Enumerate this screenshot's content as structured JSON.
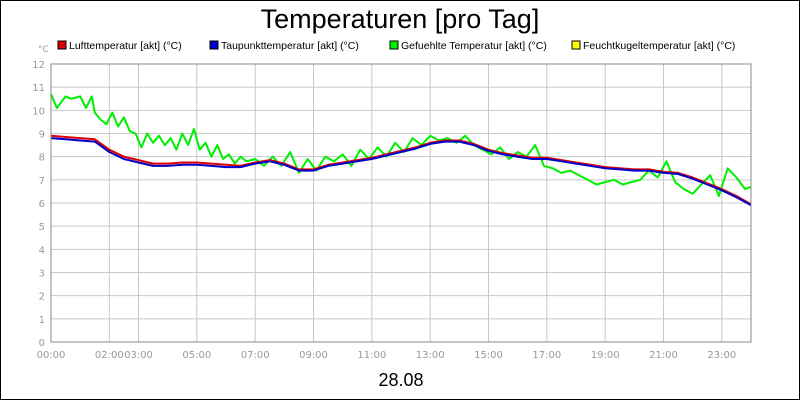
{
  "chart_data": {
    "type": "line",
    "title": "Temperaturen [pro Tag]",
    "ylabel": "°C",
    "xlabel": "28.08",
    "ylim": [
      0,
      12
    ],
    "xlim_hours": [
      0,
      24
    ],
    "y_ticks": [
      "0",
      "1",
      "2",
      "3",
      "4",
      "5",
      "6",
      "7",
      "8",
      "9",
      "10",
      "11",
      "12"
    ],
    "x_ticks": [
      {
        "hour": 0,
        "label": "00:00"
      },
      {
        "hour": 2,
        "label": "02:00"
      },
      {
        "hour": 3,
        "label": "03:00"
      },
      {
        "hour": 5,
        "label": "05:00"
      },
      {
        "hour": 7,
        "label": "07:00"
      },
      {
        "hour": 9,
        "label": "09:00"
      },
      {
        "hour": 11,
        "label": "11:00"
      },
      {
        "hour": 13,
        "label": "13:00"
      },
      {
        "hour": 15,
        "label": "15:00"
      },
      {
        "hour": 17,
        "label": "17:00"
      },
      {
        "hour": 19,
        "label": "19:00"
      },
      {
        "hour": 21,
        "label": "21:00"
      },
      {
        "hour": 23,
        "label": "23:00"
      }
    ],
    "grid": true,
    "legend_position": "top",
    "series": [
      {
        "name": "Gefuehlte Temperatur [akt] (°C)",
        "color": "#00ee00",
        "x": [
          0,
          0.2,
          0.5,
          0.7,
          1,
          1.2,
          1.4,
          1.5,
          1.7,
          1.9,
          2.1,
          2.3,
          2.5,
          2.7,
          2.9,
          3.1,
          3.3,
          3.5,
          3.7,
          3.9,
          4.1,
          4.3,
          4.5,
          4.7,
          4.9,
          5.1,
          5.3,
          5.5,
          5.7,
          5.9,
          6.1,
          6.3,
          6.5,
          6.7,
          7,
          7.3,
          7.6,
          7.9,
          8.2,
          8.5,
          8.8,
          9.1,
          9.4,
          9.7,
          10,
          10.3,
          10.6,
          10.9,
          11.2,
          11.5,
          11.8,
          12.1,
          12.4,
          12.7,
          13,
          13.3,
          13.6,
          13.9,
          14.2,
          14.5,
          14.8,
          15.1,
          15.4,
          15.7,
          16,
          16.3,
          16.6,
          16.9,
          17.2,
          17.5,
          17.8,
          18.1,
          18.4,
          18.7,
          19,
          19.3,
          19.6,
          19.9,
          20.2,
          20.5,
          20.8,
          21.1,
          21.4,
          21.7,
          22,
          22.3,
          22.6,
          22.9,
          23.2,
          23.5,
          23.8,
          24
        ],
        "values": [
          10.7,
          10.1,
          10.6,
          10.5,
          10.6,
          10.1,
          10.6,
          9.9,
          9.6,
          9.4,
          9.9,
          9.3,
          9.7,
          9.1,
          9.0,
          8.4,
          9.0,
          8.6,
          8.9,
          8.5,
          8.8,
          8.3,
          9.0,
          8.5,
          9.2,
          8.3,
          8.6,
          8.0,
          8.5,
          7.9,
          8.1,
          7.7,
          8.0,
          7.8,
          7.9,
          7.6,
          8.0,
          7.6,
          8.2,
          7.3,
          7.9,
          7.4,
          8.0,
          7.8,
          8.1,
          7.6,
          8.3,
          7.9,
          8.4,
          8.0,
          8.6,
          8.2,
          8.8,
          8.5,
          8.9,
          8.7,
          8.8,
          8.6,
          8.9,
          8.5,
          8.3,
          8.1,
          8.4,
          7.9,
          8.2,
          8.0,
          8.5,
          7.6,
          7.5,
          7.3,
          7.4,
          7.2,
          7.0,
          6.8,
          6.9,
          7.0,
          6.8,
          6.9,
          7.0,
          7.4,
          7.1,
          7.8,
          6.9,
          6.6,
          6.4,
          6.8,
          7.2,
          6.3,
          7.5,
          7.1,
          6.6,
          6.7
        ]
      },
      {
        "name": "Lufttemperatur [akt] (°C)",
        "color": "#dd0000",
        "x": [
          0,
          0.5,
          1,
          1.5,
          2,
          2.5,
          3,
          3.5,
          4,
          4.5,
          5,
          5.5,
          6,
          6.5,
          7,
          7.5,
          8,
          8.5,
          9,
          9.5,
          10,
          10.5,
          11,
          11.5,
          12,
          12.5,
          13,
          13.5,
          14,
          14.5,
          15,
          15.5,
          16,
          16.5,
          17,
          17.5,
          18,
          18.5,
          19,
          19.5,
          20,
          20.5,
          21,
          21.5,
          22,
          22.5,
          23,
          23.5,
          24
        ],
        "values": [
          8.9,
          8.85,
          8.8,
          8.75,
          8.3,
          8.0,
          7.85,
          7.7,
          7.7,
          7.75,
          7.75,
          7.7,
          7.65,
          7.6,
          7.75,
          7.85,
          7.7,
          7.45,
          7.45,
          7.65,
          7.75,
          7.85,
          7.95,
          8.1,
          8.25,
          8.4,
          8.6,
          8.7,
          8.7,
          8.55,
          8.3,
          8.15,
          8.05,
          7.95,
          7.95,
          7.85,
          7.75,
          7.65,
          7.55,
          7.5,
          7.45,
          7.45,
          7.35,
          7.3,
          7.1,
          6.85,
          6.6,
          6.3,
          5.95
        ]
      },
      {
        "name": "Taupunkttemperatur [akt] (°C)",
        "color": "#0000cc",
        "x": [
          0,
          0.5,
          1,
          1.5,
          2,
          2.5,
          3,
          3.5,
          4,
          4.5,
          5,
          5.5,
          6,
          6.5,
          7,
          7.5,
          8,
          8.5,
          9,
          9.5,
          10,
          10.5,
          11,
          11.5,
          12,
          12.5,
          13,
          13.5,
          14,
          14.5,
          15,
          15.5,
          16,
          16.5,
          17,
          17.5,
          18,
          18.5,
          19,
          19.5,
          20,
          20.5,
          21,
          21.5,
          22,
          22.5,
          23,
          23.5,
          24
        ],
        "values": [
          8.8,
          8.75,
          8.7,
          8.65,
          8.2,
          7.9,
          7.75,
          7.6,
          7.6,
          7.65,
          7.65,
          7.6,
          7.55,
          7.55,
          7.7,
          7.8,
          7.65,
          7.4,
          7.4,
          7.6,
          7.7,
          7.8,
          7.9,
          8.05,
          8.2,
          8.35,
          8.55,
          8.65,
          8.65,
          8.5,
          8.25,
          8.1,
          8.0,
          7.9,
          7.9,
          7.8,
          7.7,
          7.6,
          7.5,
          7.45,
          7.4,
          7.4,
          7.3,
          7.25,
          7.05,
          6.8,
          6.55,
          6.25,
          5.9
        ]
      },
      {
        "name": "Feuchtkugeltemperatur [akt] (°C)",
        "color": "#ffff00",
        "x": [],
        "values": []
      }
    ],
    "legend_order": [
      1,
      2,
      0,
      3
    ]
  }
}
